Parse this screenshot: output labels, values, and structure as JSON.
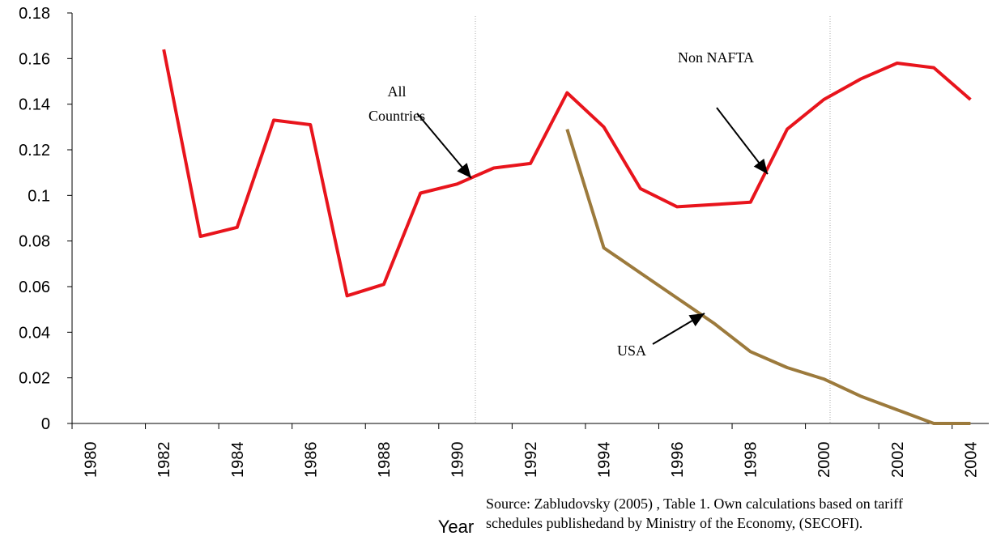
{
  "chart_data": {
    "type": "line",
    "categories": [
      "1980",
      null,
      "1982",
      null,
      "1984",
      null,
      "1986",
      null,
      "1988",
      null,
      "1990",
      null,
      "1992",
      null,
      "1994",
      null,
      "1996",
      null,
      "1998",
      null,
      "2000",
      null,
      "2002",
      null,
      "2004"
    ],
    "series": [
      {
        "color": "#e8141c",
        "values": [
          null,
          null,
          0.164,
          0.082,
          0.086,
          0.133,
          0.131,
          0.056,
          0.061,
          0.101,
          0.105,
          0.112,
          0.114,
          0.145,
          0.13,
          0.103,
          0.095,
          0.096,
          0.097,
          0.129,
          0.142,
          0.151,
          0.158,
          0.156,
          0.142
        ]
      },
      {
        "color": "#9c7a3c",
        "values": [
          null,
          null,
          null,
          null,
          null,
          null,
          null,
          null,
          null,
          null,
          null,
          null,
          null,
          0.129,
          0.077,
          0.066,
          0.055,
          0.044,
          0.0315,
          0.0245,
          0.0195,
          0.012,
          0.006,
          0,
          0
        ]
      }
    ],
    "ylim": [
      0,
      0.18
    ],
    "yticks": [
      0,
      0.02,
      0.04,
      0.06,
      0.08,
      0.1,
      0.12,
      0.14,
      0.16,
      0.18
    ],
    "x_label": "Year",
    "annotations": {
      "all_countries": [
        "All",
        "Countries"
      ],
      "non_nafta": "Non NAFTA",
      "usa": "USA"
    },
    "source": [
      "Source: Zabludovsky (2005) , Table 1.  Own calculations based on tariff",
      "schedules publishedand by Ministry of the Economy, (SECOFI)."
    ]
  }
}
